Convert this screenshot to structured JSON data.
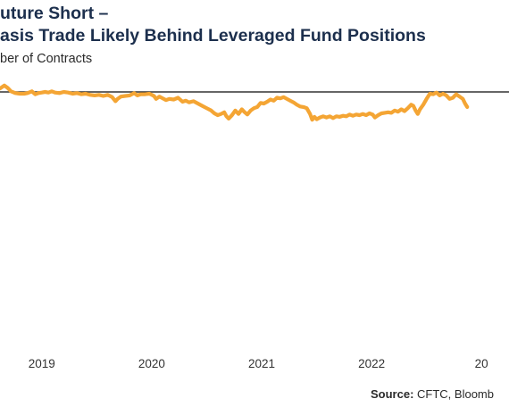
{
  "title_lines": [
    "uture Short –",
    "asis Trade Likely Behind Leveraged Fund Positions"
  ],
  "subtitle": "ber of Contracts",
  "source": {
    "label": "Source:",
    "text": " CFTC, Bloomb"
  },
  "chart_data": {
    "type": "line",
    "title": "uture Short – asis Trade Likely Behind Leveraged Fund Positions",
    "ylabel": "ber of Contracts",
    "x_tick_labels": [
      "2019",
      "2020",
      "2021",
      "2022",
      "20"
    ],
    "x_tick_years": [
      2019.0,
      2020.0,
      2021.0,
      2022.0,
      2023.0
    ],
    "xlim": [
      2018.62,
      2023.25
    ],
    "ylim": [
      -10.6,
      1.4
    ],
    "zero_line": true,
    "color": "#f4a534",
    "series": [
      {
        "points": [
          [
            2018.62,
            0.3
          ],
          [
            2018.66,
            0.55
          ],
          [
            2018.69,
            0.35
          ],
          [
            2018.72,
            0.05
          ],
          [
            2018.76,
            -0.1
          ],
          [
            2018.8,
            -0.15
          ],
          [
            2018.84,
            -0.15
          ],
          [
            2018.87,
            -0.1
          ],
          [
            2018.91,
            0.05
          ],
          [
            2018.94,
            -0.2
          ],
          [
            2018.97,
            -0.1
          ],
          [
            2019.0,
            -0.05
          ],
          [
            2019.03,
            0.0
          ],
          [
            2019.06,
            -0.05
          ],
          [
            2019.09,
            0.05
          ],
          [
            2019.12,
            -0.05
          ],
          [
            2019.16,
            -0.1
          ],
          [
            2019.2,
            0.0
          ],
          [
            2019.24,
            -0.05
          ],
          [
            2019.28,
            -0.15
          ],
          [
            2019.32,
            -0.1
          ],
          [
            2019.36,
            -0.2
          ],
          [
            2019.4,
            -0.15
          ],
          [
            2019.44,
            -0.25
          ],
          [
            2019.48,
            -0.3
          ],
          [
            2019.52,
            -0.25
          ],
          [
            2019.56,
            -0.35
          ],
          [
            2019.6,
            -0.25
          ],
          [
            2019.64,
            -0.45
          ],
          [
            2019.67,
            -0.8
          ],
          [
            2019.69,
            -0.6
          ],
          [
            2019.72,
            -0.4
          ],
          [
            2019.76,
            -0.35
          ],
          [
            2019.8,
            -0.3
          ],
          [
            2019.84,
            -0.1
          ],
          [
            2019.87,
            -0.3
          ],
          [
            2019.9,
            -0.2
          ],
          [
            2019.94,
            -0.2
          ],
          [
            2019.98,
            -0.15
          ],
          [
            2020.02,
            -0.35
          ],
          [
            2020.04,
            -0.6
          ],
          [
            2020.07,
            -0.4
          ],
          [
            2020.1,
            -0.55
          ],
          [
            2020.13,
            -0.7
          ],
          [
            2020.16,
            -0.6
          ],
          [
            2020.2,
            -0.65
          ],
          [
            2020.24,
            -0.5
          ],
          [
            2020.28,
            -0.85
          ],
          [
            2020.31,
            -0.75
          ],
          [
            2020.34,
            -0.9
          ],
          [
            2020.38,
            -0.8
          ],
          [
            2020.42,
            -1.0
          ],
          [
            2020.46,
            -1.2
          ],
          [
            2020.5,
            -1.4
          ],
          [
            2020.54,
            -1.6
          ],
          [
            2020.57,
            -1.85
          ],
          [
            2020.6,
            -2.0
          ],
          [
            2020.63,
            -1.9
          ],
          [
            2020.66,
            -1.75
          ],
          [
            2020.68,
            -2.1
          ],
          [
            2020.7,
            -2.3
          ],
          [
            2020.73,
            -2.0
          ],
          [
            2020.76,
            -1.6
          ],
          [
            2020.79,
            -1.9
          ],
          [
            2020.82,
            -1.5
          ],
          [
            2020.84,
            -1.7
          ],
          [
            2020.87,
            -1.95
          ],
          [
            2020.9,
            -1.6
          ],
          [
            2020.93,
            -1.4
          ],
          [
            2020.96,
            -1.3
          ],
          [
            2020.99,
            -0.95
          ],
          [
            2021.02,
            -1.0
          ],
          [
            2021.05,
            -0.85
          ],
          [
            2021.08,
            -0.65
          ],
          [
            2021.11,
            -0.75
          ],
          [
            2021.14,
            -0.5
          ],
          [
            2021.17,
            -0.55
          ],
          [
            2021.2,
            -0.45
          ],
          [
            2021.23,
            -0.6
          ],
          [
            2021.26,
            -0.75
          ],
          [
            2021.29,
            -0.9
          ],
          [
            2021.32,
            -1.1
          ],
          [
            2021.35,
            -1.25
          ],
          [
            2021.38,
            -1.3
          ],
          [
            2021.41,
            -1.4
          ],
          [
            2021.44,
            -1.9
          ],
          [
            2021.46,
            -2.4
          ],
          [
            2021.48,
            -2.15
          ],
          [
            2021.5,
            -2.35
          ],
          [
            2021.53,
            -2.2
          ],
          [
            2021.56,
            -2.1
          ],
          [
            2021.59,
            -2.2
          ],
          [
            2021.62,
            -2.1
          ],
          [
            2021.65,
            -2.25
          ],
          [
            2021.68,
            -2.1
          ],
          [
            2021.71,
            -2.15
          ],
          [
            2021.74,
            -2.05
          ],
          [
            2021.77,
            -2.1
          ],
          [
            2021.8,
            -1.95
          ],
          [
            2021.83,
            -2.05
          ],
          [
            2021.86,
            -1.95
          ],
          [
            2021.89,
            -2.0
          ],
          [
            2021.92,
            -1.9
          ],
          [
            2021.95,
            -2.0
          ],
          [
            2021.98,
            -1.85
          ],
          [
            2022.01,
            -1.95
          ],
          [
            2022.03,
            -2.2
          ],
          [
            2022.06,
            -2.0
          ],
          [
            2022.09,
            -1.85
          ],
          [
            2022.12,
            -1.8
          ],
          [
            2022.15,
            -1.75
          ],
          [
            2022.18,
            -1.8
          ],
          [
            2022.21,
            -1.6
          ],
          [
            2022.24,
            -1.7
          ],
          [
            2022.27,
            -1.5
          ],
          [
            2022.3,
            -1.65
          ],
          [
            2022.33,
            -1.4
          ],
          [
            2022.36,
            -1.1
          ],
          [
            2022.38,
            -1.2
          ],
          [
            2022.4,
            -1.6
          ],
          [
            2022.42,
            -1.9
          ],
          [
            2022.44,
            -1.5
          ],
          [
            2022.47,
            -1.1
          ],
          [
            2022.5,
            -0.6
          ],
          [
            2022.53,
            -0.15
          ],
          [
            2022.56,
            -0.2
          ],
          [
            2022.59,
            -0.05
          ],
          [
            2022.62,
            -0.3
          ],
          [
            2022.65,
            -0.15
          ],
          [
            2022.68,
            -0.3
          ],
          [
            2022.71,
            -0.6
          ],
          [
            2022.74,
            -0.5
          ],
          [
            2022.77,
            -0.2
          ],
          [
            2022.8,
            -0.4
          ],
          [
            2022.83,
            -0.6
          ],
          [
            2022.85,
            -1.0
          ],
          [
            2022.87,
            -1.3
          ]
        ]
      }
    ]
  }
}
